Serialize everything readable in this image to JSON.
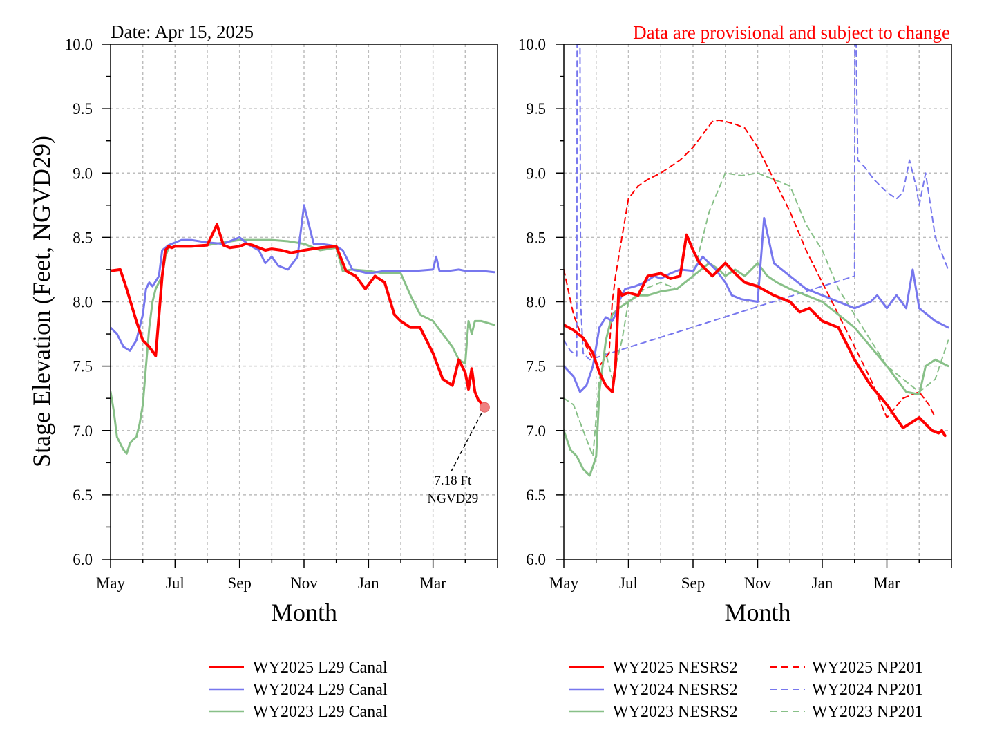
{
  "header": {
    "date_label": "Date: Apr 15, 2025",
    "provisional_note": "Data are provisional and subject to change"
  },
  "colors": {
    "wy2025": "#ff0000",
    "wy2024": "#7777ee",
    "wy2023": "#88c088"
  },
  "chart_data": [
    {
      "type": "line",
      "title": "",
      "xlabel": "Month",
      "ylabel": "Stage Elevation (Feet, NGVD29)",
      "ylim": [
        6.0,
        10.0
      ],
      "yticks": [
        "6.0",
        "6.5",
        "7.0",
        "7.5",
        "8.0",
        "8.5",
        "9.0",
        "9.5",
        "10.0"
      ],
      "x_tick_labels": [
        "May",
        "Jul",
        "Sep",
        "Nov",
        "Jan",
        "Mar"
      ],
      "x_units": "months since May 1 of water year",
      "xlim": [
        0,
        12
      ],
      "grid": true,
      "legend_position": "bottom",
      "annotation": {
        "line1": "7.18 Ft",
        "line2": "NGVD29",
        "x": 11.6,
        "y": 7.18
      },
      "series": [
        {
          "name": "WY2025 L29 Canal",
          "color": "#ff0000",
          "dash": false,
          "width": 4,
          "x": [
            0,
            0.3,
            0.5,
            0.8,
            1.0,
            1.2,
            1.4,
            1.6,
            1.7,
            1.8,
            1.9,
            2.0,
            2.5,
            3.0,
            3.3,
            3.5,
            3.7,
            4.0,
            4.2,
            4.4,
            4.6,
            4.8,
            5.0,
            5.3,
            5.6,
            6.0,
            6.5,
            7.0,
            7.3,
            7.6,
            7.9,
            8.2,
            8.5,
            8.8,
            9.0,
            9.3,
            9.6,
            10.0,
            10.3,
            10.6,
            10.8,
            11.0,
            11.1,
            11.2,
            11.3,
            11.4,
            11.5,
            11.6
          ],
          "y": [
            8.24,
            8.25,
            8.1,
            7.85,
            7.7,
            7.65,
            7.58,
            8.2,
            8.4,
            8.43,
            8.42,
            8.43,
            8.43,
            8.44,
            8.6,
            8.44,
            8.42,
            8.43,
            8.45,
            8.44,
            8.42,
            8.4,
            8.41,
            8.4,
            8.38,
            8.4,
            8.42,
            8.43,
            8.24,
            8.2,
            8.1,
            8.2,
            8.15,
            7.9,
            7.85,
            7.8,
            7.8,
            7.6,
            7.4,
            7.35,
            7.55,
            7.45,
            7.32,
            7.48,
            7.3,
            7.24,
            7.21,
            7.18
          ]
        },
        {
          "name": "WY2024 L29 Canal",
          "color": "#7777ee",
          "dash": false,
          "width": 3,
          "x": [
            0,
            0.2,
            0.4,
            0.6,
            0.8,
            1.0,
            1.1,
            1.2,
            1.3,
            1.5,
            1.6,
            1.7,
            1.8,
            1.9,
            2.2,
            2.5,
            3.0,
            3.5,
            4.0,
            4.3,
            4.6,
            4.8,
            5.0,
            5.2,
            5.5,
            5.8,
            6.0,
            6.3,
            6.5,
            6.8,
            7.0,
            7.2,
            7.5,
            8.0,
            8.5,
            9.0,
            9.5,
            10.0,
            10.1,
            10.2,
            10.5,
            10.8,
            11.0,
            11.5,
            11.9
          ],
          "y": [
            7.8,
            7.75,
            7.65,
            7.62,
            7.7,
            7.9,
            8.1,
            8.15,
            8.12,
            8.2,
            8.4,
            8.42,
            8.44,
            8.45,
            8.48,
            8.48,
            8.46,
            8.45,
            8.5,
            8.44,
            8.4,
            8.3,
            8.35,
            8.28,
            8.25,
            8.35,
            8.75,
            8.45,
            8.45,
            8.44,
            8.43,
            8.4,
            8.25,
            8.22,
            8.24,
            8.24,
            8.24,
            8.25,
            8.35,
            8.24,
            8.24,
            8.25,
            8.24,
            8.24,
            8.23
          ]
        },
        {
          "name": "WY2023 L29 Canal",
          "color": "#88c088",
          "dash": false,
          "width": 3,
          "x": [
            0,
            0.1,
            0.2,
            0.3,
            0.4,
            0.5,
            0.6,
            0.7,
            0.8,
            0.9,
            1.0,
            1.1,
            1.2,
            1.3,
            1.4,
            1.5,
            1.6,
            1.7,
            1.8,
            2.0,
            2.5,
            3.0,
            3.5,
            4.0,
            4.5,
            5.0,
            5.5,
            6.0,
            6.5,
            7.0,
            7.2,
            7.5,
            8.0,
            8.5,
            9.0,
            9.3,
            9.6,
            10.0,
            10.3,
            10.6,
            10.8,
            11.0,
            11.1,
            11.2,
            11.3,
            11.5,
            11.9
          ],
          "y": [
            7.3,
            7.15,
            6.95,
            6.9,
            6.85,
            6.82,
            6.9,
            6.93,
            6.95,
            7.05,
            7.2,
            7.5,
            7.8,
            8.0,
            8.1,
            8.15,
            8.2,
            8.35,
            8.42,
            8.43,
            8.43,
            8.44,
            8.46,
            8.48,
            8.48,
            8.48,
            8.47,
            8.45,
            8.4,
            8.42,
            8.24,
            8.25,
            8.24,
            8.22,
            8.22,
            8.05,
            7.9,
            7.85,
            7.75,
            7.65,
            7.55,
            7.52,
            7.85,
            7.75,
            7.85,
            7.85,
            7.82
          ]
        }
      ]
    },
    {
      "type": "line",
      "title": "",
      "xlabel": "Month",
      "ylabel": "",
      "ylim": [
        6.0,
        10.0
      ],
      "yticks": [
        "6.0",
        "6.5",
        "7.0",
        "7.5",
        "8.0",
        "8.5",
        "9.0",
        "9.5",
        "10.0"
      ],
      "x_tick_labels": [
        "May",
        "Jul",
        "Sep",
        "Nov",
        "Jan",
        "Mar"
      ],
      "x_units": "months since May 1 of water year",
      "xlim": [
        0,
        12
      ],
      "grid": true,
      "legend_position": "bottom",
      "series": [
        {
          "name": "WY2025 NESRS2",
          "color": "#ff0000",
          "dash": false,
          "width": 4,
          "x": [
            0,
            0.3,
            0.6,
            0.9,
            1.1,
            1.3,
            1.5,
            1.6,
            1.7,
            1.8,
            2.0,
            2.3,
            2.6,
            3.0,
            3.3,
            3.6,
            3.8,
            4.0,
            4.1,
            4.2,
            4.4,
            4.6,
            4.8,
            5.0,
            5.3,
            5.6,
            6.0,
            6.5,
            7.0,
            7.3,
            7.6,
            8.0,
            8.5,
            9.0,
            9.5,
            10.0,
            10.5,
            11.0,
            11.2,
            11.4,
            11.6,
            11.7,
            11.8
          ],
          "y": [
            7.82,
            7.78,
            7.72,
            7.6,
            7.45,
            7.35,
            7.3,
            7.5,
            8.1,
            8.05,
            8.07,
            8.05,
            8.2,
            8.22,
            8.18,
            8.2,
            8.52,
            8.4,
            8.35,
            8.3,
            8.25,
            8.2,
            8.25,
            8.3,
            8.22,
            8.15,
            8.12,
            8.05,
            8.0,
            7.92,
            7.95,
            7.85,
            7.8,
            7.55,
            7.35,
            7.2,
            7.02,
            7.1,
            7.05,
            7.0,
            6.98,
            7.0,
            6.96
          ]
        },
        {
          "name": "WY2024 NESRS2",
          "color": "#7777ee",
          "dash": false,
          "width": 3,
          "x": [
            0,
            0.3,
            0.5,
            0.7,
            0.9,
            1.1,
            1.3,
            1.5,
            1.6,
            1.7,
            1.9,
            2.2,
            2.5,
            2.8,
            3.0,
            3.3,
            3.6,
            4.0,
            4.3,
            4.5,
            4.7,
            5.0,
            5.2,
            5.5,
            6.0,
            6.2,
            6.5,
            7.0,
            7.5,
            8.0,
            8.5,
            9.0,
            9.5,
            9.7,
            10.0,
            10.3,
            10.6,
            10.8,
            11.0,
            11.5,
            11.9
          ],
          "y": [
            7.5,
            7.42,
            7.3,
            7.35,
            7.5,
            7.8,
            7.88,
            7.85,
            7.9,
            8.0,
            8.1,
            8.12,
            8.15,
            8.2,
            8.18,
            8.22,
            8.25,
            8.24,
            8.35,
            8.3,
            8.25,
            8.15,
            8.05,
            8.02,
            8.0,
            8.65,
            8.3,
            8.2,
            8.1,
            8.05,
            8.0,
            7.95,
            8.0,
            8.05,
            7.95,
            8.05,
            7.95,
            8.25,
            7.95,
            7.85,
            7.8
          ]
        },
        {
          "name": "WY2023 NESRS2",
          "color": "#88c088",
          "dash": false,
          "width": 3,
          "x": [
            0,
            0.2,
            0.4,
            0.6,
            0.8,
            0.9,
            1.0,
            1.1,
            1.2,
            1.3,
            1.5,
            1.7,
            2.0,
            2.3,
            2.6,
            3.0,
            3.5,
            4.0,
            4.5,
            4.8,
            5.0,
            5.3,
            5.6,
            6.0,
            6.3,
            6.6,
            7.0,
            7.5,
            8.0,
            8.5,
            9.0,
            9.5,
            10.0,
            10.3,
            10.6,
            11.0,
            11.2,
            11.5,
            11.9
          ],
          "y": [
            7.0,
            6.85,
            6.8,
            6.7,
            6.65,
            6.72,
            6.8,
            7.3,
            7.5,
            7.7,
            7.9,
            7.95,
            8.0,
            8.05,
            8.05,
            8.08,
            8.1,
            8.2,
            8.3,
            8.25,
            8.2,
            8.25,
            8.2,
            8.3,
            8.2,
            8.15,
            8.1,
            8.05,
            8.0,
            7.9,
            7.8,
            7.65,
            7.5,
            7.4,
            7.3,
            7.28,
            7.5,
            7.55,
            7.5
          ]
        },
        {
          "name": "WY2025 NP201",
          "color": "#ff0000",
          "dash": true,
          "width": 2,
          "x": [
            0,
            0.3,
            0.6,
            0.9,
            1.1,
            1.4,
            1.5,
            1.6,
            1.8,
            2.0,
            2.3,
            2.6,
            3.0,
            3.3,
            3.6,
            4.0,
            4.3,
            4.6,
            4.8,
            5.0,
            5.3,
            5.6,
            6.0,
            6.5,
            7.0,
            7.5,
            8.0,
            8.5,
            9.0,
            9.5,
            10.0,
            10.5,
            11.0,
            11.3,
            11.5
          ],
          "y": [
            8.25,
            7.9,
            7.7,
            7.55,
            7.5,
            7.6,
            8.0,
            8.2,
            8.5,
            8.8,
            8.9,
            8.95,
            9.0,
            9.05,
            9.1,
            9.2,
            9.3,
            9.4,
            9.41,
            9.4,
            9.38,
            9.35,
            9.2,
            8.95,
            8.7,
            8.4,
            8.15,
            7.9,
            7.65,
            7.4,
            7.1,
            7.25,
            7.3,
            7.2,
            7.1
          ]
        },
        {
          "name": "WY2024 NP201",
          "color": "#7777ee",
          "dash": true,
          "width": 2,
          "x": [
            0,
            0.2,
            0.4,
            0.41,
            0.45,
            0.5,
            0.52,
            0.6,
            0.8,
            9.0,
            9.01,
            9.05,
            9.1,
            9.3,
            9.6,
            10.0,
            10.3,
            10.5,
            10.7,
            10.9,
            11.0,
            11.2,
            11.5,
            11.9
          ],
          "y": [
            7.7,
            7.62,
            7.58,
            10.0,
            10.0,
            10.0,
            8.0,
            7.6,
            7.55,
            8.2,
            10.0,
            10.0,
            9.1,
            9.05,
            8.95,
            8.85,
            8.8,
            8.85,
            9.1,
            8.9,
            8.75,
            9.0,
            8.5,
            8.25
          ]
        },
        {
          "name": "WY2023 NP201",
          "color": "#88c088",
          "dash": true,
          "width": 2,
          "x": [
            0,
            0.3,
            0.6,
            0.9,
            1.1,
            1.3,
            1.5,
            1.8,
            2.0,
            2.5,
            3.0,
            3.5,
            4.0,
            4.5,
            5.0,
            5.5,
            6.0,
            6.5,
            7.0,
            7.5,
            8.0,
            8.5,
            9.0,
            9.5,
            10.0,
            10.5,
            11.0,
            11.5,
            11.9
          ],
          "y": [
            7.25,
            7.2,
            7.0,
            6.8,
            7.4,
            7.6,
            7.4,
            7.7,
            8.0,
            8.1,
            8.15,
            8.1,
            8.2,
            8.7,
            9.0,
            8.98,
            9.0,
            8.95,
            8.9,
            8.6,
            8.4,
            8.1,
            7.9,
            7.7,
            7.5,
            7.4,
            7.3,
            7.4,
            7.7
          ]
        }
      ]
    }
  ],
  "legend": {
    "left": [
      {
        "label": "WY2025 L29 Canal",
        "color": "#ff0000",
        "dash": false
      },
      {
        "label": "WY2024 L29 Canal",
        "color": "#7777ee",
        "dash": false
      },
      {
        "label": "WY2023 L29 Canal",
        "color": "#88c088",
        "dash": false
      }
    ],
    "right_solid": [
      {
        "label": "WY2025 NESRS2",
        "color": "#ff0000",
        "dash": false
      },
      {
        "label": "WY2024 NESRS2",
        "color": "#7777ee",
        "dash": false
      },
      {
        "label": "WY2023 NESRS2",
        "color": "#88c088",
        "dash": false
      }
    ],
    "right_dashed": [
      {
        "label": "WY2025 NP201",
        "color": "#ff0000",
        "dash": true
      },
      {
        "label": "WY2024 NP201",
        "color": "#7777ee",
        "dash": true
      },
      {
        "label": "WY2023 NP201",
        "color": "#88c088",
        "dash": true
      }
    ]
  }
}
